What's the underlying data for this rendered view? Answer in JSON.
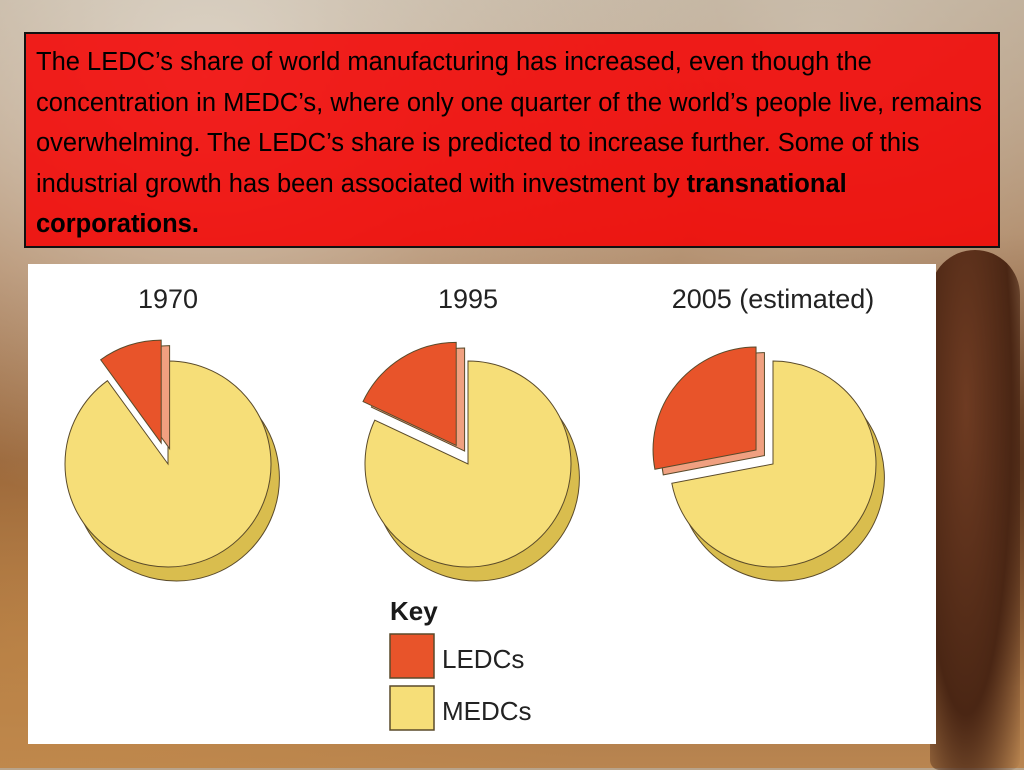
{
  "slide": {
    "paragraph_main": "The LEDC’s share of world manufacturing has increased, even though the concentration in MEDC’s, where only one quarter of the world’s people live, remains overwhelming. The LEDC’s share is predicted to increase further. Some of this industrial growth has been associated with investment by ",
    "paragraph_bold": "transnational corporations."
  },
  "chart_data": {
    "type": "pie",
    "charts": [
      {
        "title": "1970",
        "slices": [
          {
            "label": "LEDCs",
            "value": 10
          },
          {
            "label": "MEDCs",
            "value": 90
          }
        ]
      },
      {
        "title": "1995",
        "slices": [
          {
            "label": "LEDCs",
            "value": 18
          },
          {
            "label": "MEDCs",
            "value": 82
          }
        ]
      },
      {
        "title": "2005 (estimated)",
        "slices": [
          {
            "label": "LEDCs",
            "value": 28
          },
          {
            "label": "MEDCs",
            "value": 72
          }
        ]
      }
    ],
    "key_title": "Key",
    "legend": [
      {
        "label": "LEDCs",
        "color": "#e8542a"
      },
      {
        "label": "MEDCs",
        "color": "#f6de78"
      }
    ]
  }
}
